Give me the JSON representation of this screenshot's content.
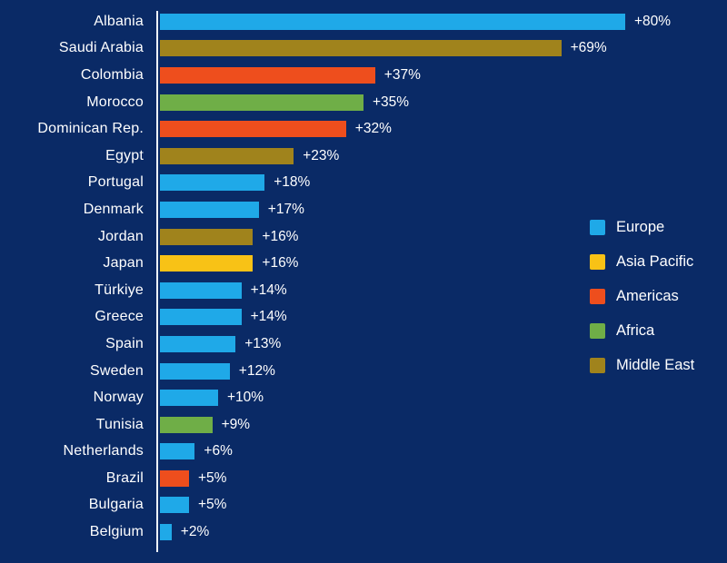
{
  "chart_data": {
    "type": "bar",
    "orientation": "horizontal",
    "title": "",
    "xlabel": "",
    "ylabel": "",
    "xlim": [
      0,
      85
    ],
    "grid": false,
    "legend_position": "right",
    "background_color": "#0a2a66",
    "text_color": "#ffffff",
    "axis_line_color": "#eef3fb",
    "categories": [
      "Albania",
      "Saudi Arabia",
      "Colombia",
      "Morocco",
      "Dominican Rep.",
      "Egypt",
      "Portugal",
      "Denmark",
      "Jordan",
      "Japan",
      "Türkiye",
      "Greece",
      "Spain",
      "Sweden",
      "Norway",
      "Tunisia",
      "Netherlands",
      "Brazil",
      "Bulgaria",
      "Belgium"
    ],
    "values": [
      80,
      69,
      37,
      35,
      32,
      23,
      18,
      17,
      16,
      16,
      14,
      14,
      13,
      12,
      10,
      9,
      6,
      5,
      5,
      2
    ],
    "value_labels": [
      "+80%",
      "+69%",
      "+37%",
      "+35%",
      "+32%",
      "+23%",
      "+18%",
      "+17%",
      "+16%",
      "+16%",
      "+14%",
      "+14%",
      "+13%",
      "+12%",
      "+10%",
      "+9%",
      "+6%",
      "+5%",
      "+5%",
      "+2%"
    ],
    "regions": [
      "Europe",
      "Middle East",
      "Americas",
      "Africa",
      "Americas",
      "Middle East",
      "Europe",
      "Europe",
      "Middle East",
      "Asia Pacific",
      "Europe",
      "Europe",
      "Europe",
      "Europe",
      "Europe",
      "Africa",
      "Europe",
      "Americas",
      "Europe",
      "Europe"
    ],
    "region_colors": {
      "Europe": "#1fa9e8",
      "Asia Pacific": "#f8c216",
      "Americas": "#ee4e1d",
      "Africa": "#6fae47",
      "Middle East": "#a0831c"
    },
    "legend": [
      {
        "label": "Europe",
        "color": "#1fa9e8"
      },
      {
        "label": "Asia Pacific",
        "color": "#f8c216"
      },
      {
        "label": "Americas",
        "color": "#ee4e1d"
      },
      {
        "label": "Africa",
        "color": "#6fae47"
      },
      {
        "label": "Middle East",
        "color": "#a0831c"
      }
    ]
  }
}
